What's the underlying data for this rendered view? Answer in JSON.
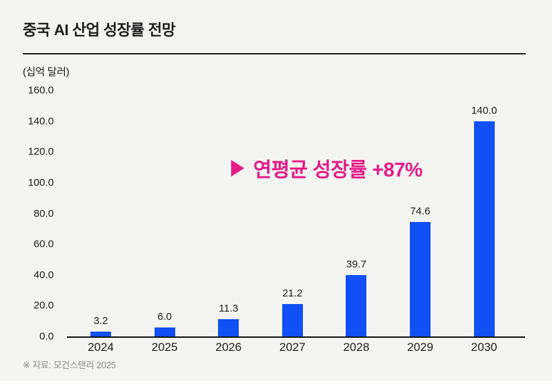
{
  "title": "중국 AI 산업 성장률 전망",
  "unit_label": "(십억 달러)",
  "annotation": {
    "icon": "play-triangle",
    "text": "연평균 성장률 +87%"
  },
  "source": "※ 자료: 모건스탠리 2025",
  "colors": {
    "background": "#f4f4f2",
    "bar": "#1150f5",
    "accent_pink": "#e61b87",
    "axis": "#111111",
    "text": "#1c1c1c",
    "source_text": "#8a8a8a"
  },
  "chart_data": {
    "type": "bar",
    "title": "중국 AI 산업 성장률 전망",
    "xlabel": "",
    "ylabel": "(십억 달러)",
    "categories": [
      "2024",
      "2025",
      "2026",
      "2027",
      "2028",
      "2029",
      "2030"
    ],
    "values": [
      3.2,
      6.0,
      11.3,
      21.2,
      39.7,
      74.6,
      140.0
    ],
    "value_labels": [
      "3.2",
      "6.0",
      "11.3",
      "21.2",
      "39.7",
      "74.6",
      "140.0"
    ],
    "ylim": [
      0,
      160
    ],
    "ytick_step": 20,
    "ytick_labels": [
      "0.0",
      "20.0",
      "40.0",
      "60.0",
      "80.0",
      "100.0",
      "120.0",
      "140.0",
      "160.0"
    ],
    "grid": false,
    "legend": false,
    "annotation": "연평균 성장률 +87%"
  }
}
